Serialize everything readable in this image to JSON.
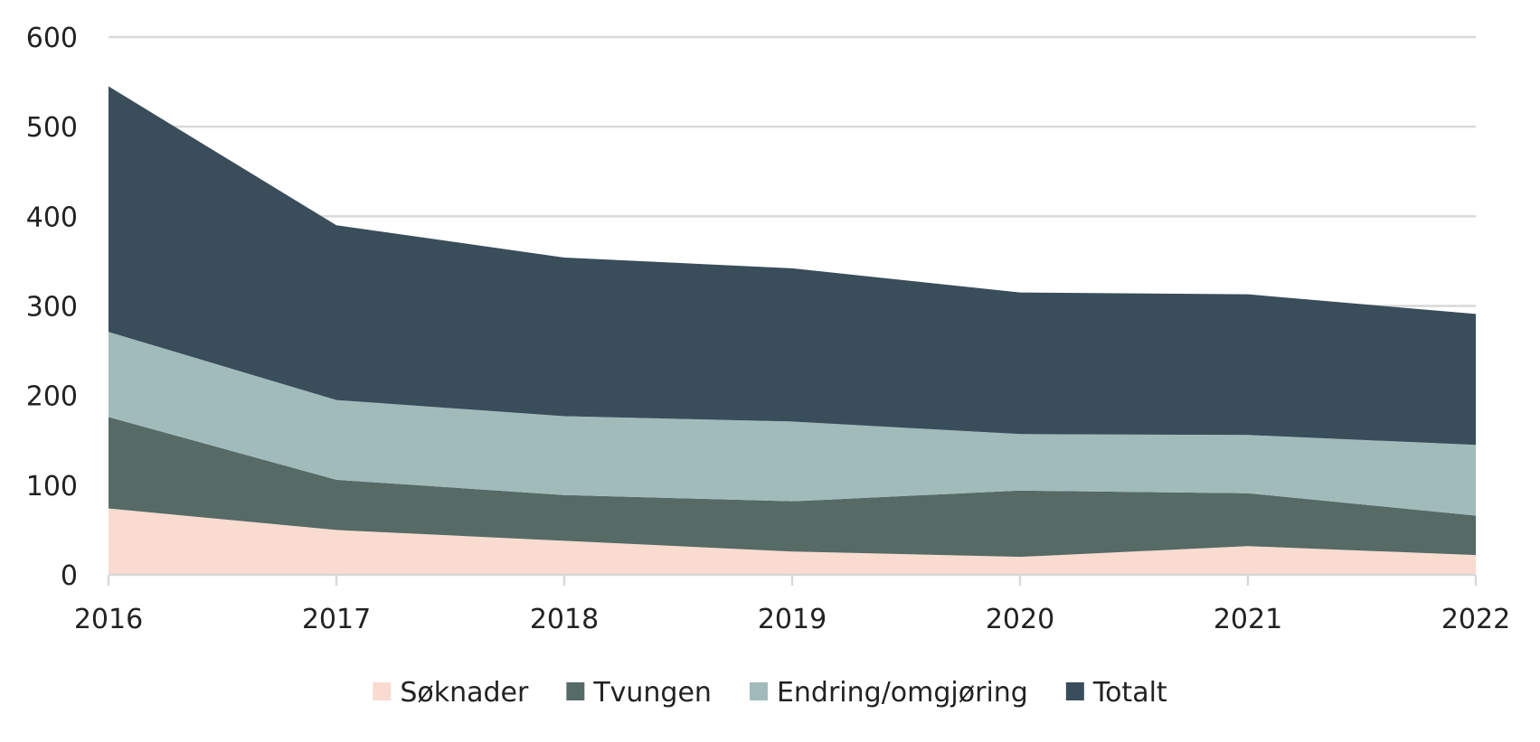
{
  "chart_data": {
    "type": "area",
    "stacked": true,
    "x": [
      "2016",
      "2017",
      "2018",
      "2019",
      "2020",
      "2021",
      "2022"
    ],
    "series": [
      {
        "name": "Søknader",
        "color": "#f9dbd0",
        "values": [
          74,
          50,
          38,
          26,
          20,
          32,
          22
        ]
      },
      {
        "name": "Tvungen",
        "color": "#566a66",
        "values": [
          102,
          56,
          51,
          56,
          74,
          59,
          44
        ]
      },
      {
        "name": "Endring/omgjøring",
        "color": "#a1bbbb",
        "values": [
          95,
          89,
          88,
          89,
          63,
          65,
          79
        ]
      },
      {
        "name": "Totalt",
        "color": "#3a4d5b",
        "values": [
          274,
          195,
          177,
          171,
          158,
          157,
          146
        ]
      }
    ],
    "ylim": [
      0,
      600
    ],
    "yticks": [
      "0",
      "100",
      "200",
      "300",
      "400",
      "500",
      "600"
    ],
    "grid": true,
    "legend_position": "bottom"
  }
}
